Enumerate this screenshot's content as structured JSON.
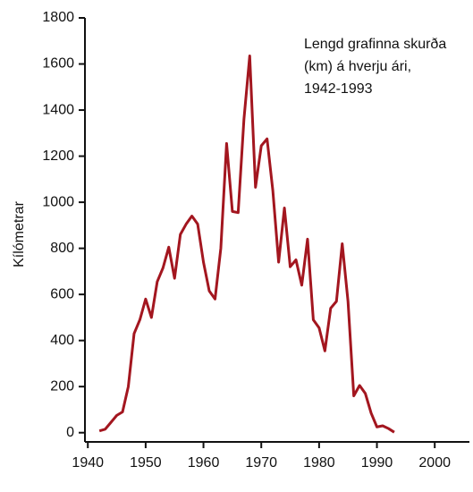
{
  "chart_data": {
    "type": "line",
    "annotation": [
      "Lengd grafinna skurða",
      "(km) á hverju ári,",
      "1942-1993"
    ],
    "y_label": "Kílómetrar",
    "x": [
      1942,
      1943,
      1944,
      1945,
      1946,
      1947,
      1948,
      1949,
      1950,
      1951,
      1952,
      1953,
      1954,
      1955,
      1956,
      1957,
      1958,
      1959,
      1960,
      1961,
      1962,
      1963,
      1964,
      1965,
      1966,
      1967,
      1968,
      1969,
      1970,
      1971,
      1972,
      1973,
      1974,
      1975,
      1976,
      1977,
      1978,
      1979,
      1980,
      1981,
      1982,
      1983,
      1984,
      1985,
      1986,
      1987,
      1988,
      1989,
      1990,
      1991,
      1992,
      1993
    ],
    "series": [
      {
        "color": "#a3161f",
        "values": [
          8,
          15,
          45,
          75,
          90,
          200,
          430,
          490,
          580,
          500,
          655,
          715,
          805,
          670,
          860,
          905,
          940,
          905,
          740,
          615,
          580,
          800,
          1255,
          960,
          955,
          1360,
          1635,
          1065,
          1245,
          1275,
          1050,
          740,
          975,
          720,
          750,
          640,
          840,
          490,
          455,
          355,
          540,
          570,
          820,
          570,
          160,
          205,
          170,
          85,
          25,
          30,
          18,
          2
        ]
      }
    ],
    "xlim": [
      1939.5,
      2006
    ],
    "xticks": [
      1940,
      1950,
      1960,
      1970,
      1980,
      1990,
      2000
    ],
    "ylim": [
      -40,
      1800
    ],
    "yticks": [
      0,
      200,
      400,
      600,
      800,
      1000,
      1200,
      1400,
      1600,
      1800
    ],
    "grid": false
  }
}
